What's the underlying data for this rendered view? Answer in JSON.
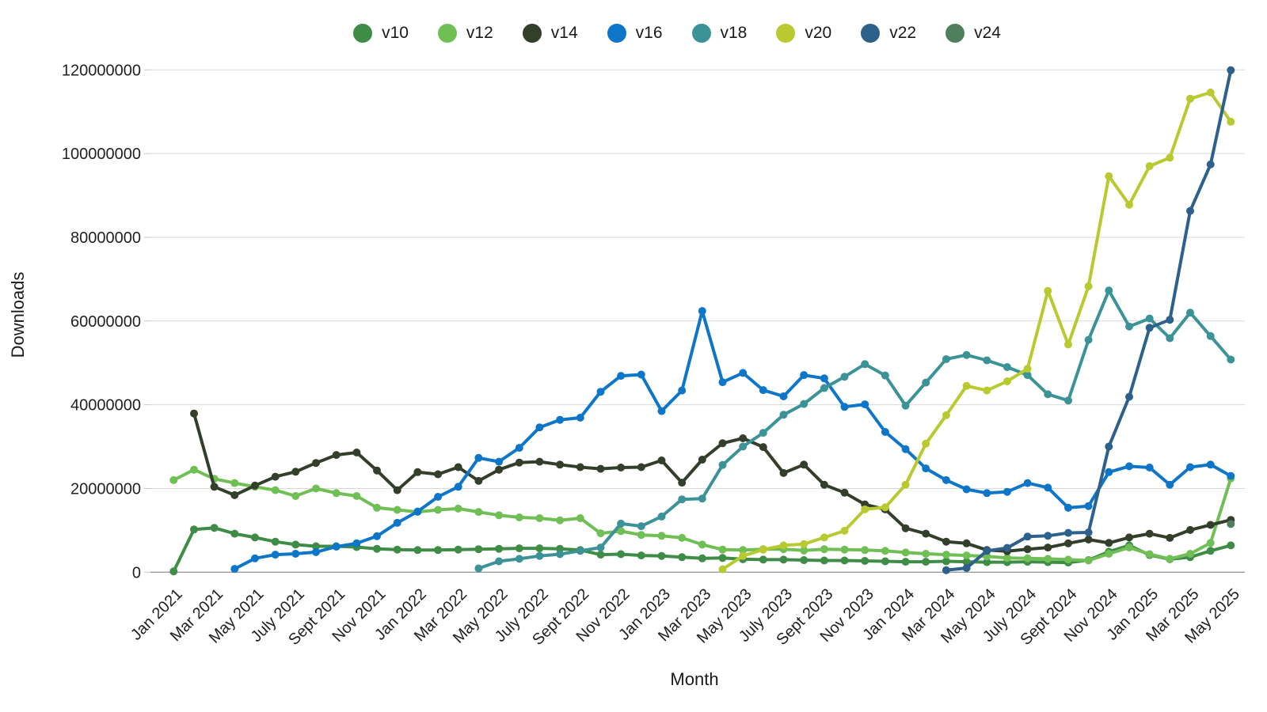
{
  "chart_data": {
    "type": "line",
    "title": "",
    "xlabel": "Month",
    "ylabel": "Downloads",
    "legend_position": "top-center",
    "grid": "horizontal",
    "ylim": [
      0,
      120000000
    ],
    "y_ticks": [
      0,
      20000000,
      40000000,
      60000000,
      80000000,
      100000000,
      120000000
    ],
    "x_tick_labels": [
      "Jan 2021",
      "Mar 2021",
      "May 2021",
      "July 2021",
      "Sept 2021",
      "Nov 2021",
      "Jan 2022",
      "Mar 2022",
      "May 2022",
      "July 2022",
      "Sept 2022",
      "Nov 2022",
      "Jan 2023",
      "Mar 2023",
      "May 2023",
      "July 2023",
      "Sept 2023",
      "Nov 2023",
      "Jan 2024",
      "Mar 2024",
      "May 2024",
      "July 2024",
      "Sept 2024",
      "Nov 2024",
      "Jan 2025",
      "Mar 2025",
      "May 2025"
    ],
    "x": [
      "Jan 2021",
      "Feb 2021",
      "Mar 2021",
      "Apr 2021",
      "May 2021",
      "Jun 2021",
      "Jul 2021",
      "Aug 2021",
      "Sep 2021",
      "Oct 2021",
      "Nov 2021",
      "Dec 2021",
      "Jan 2022",
      "Feb 2022",
      "Mar 2022",
      "Apr 2022",
      "May 2022",
      "Jun 2022",
      "Jul 2022",
      "Aug 2022",
      "Sep 2022",
      "Oct 2022",
      "Nov 2022",
      "Dec 2022",
      "Jan 2023",
      "Feb 2023",
      "Mar 2023",
      "Apr 2023",
      "May 2023",
      "Jun 2023",
      "Jul 2023",
      "Aug 2023",
      "Sep 2023",
      "Oct 2023",
      "Nov 2023",
      "Dec 2023",
      "Jan 2024",
      "Feb 2024",
      "Mar 2024",
      "Apr 2024",
      "May 2024",
      "Jun 2024",
      "Jul 2024",
      "Aug 2024",
      "Sep 2024",
      "Oct 2024",
      "Nov 2024",
      "Dec 2024",
      "Jan 2025",
      "Feb 2025",
      "Mar 2025",
      "Apr 2025",
      "May 2025"
    ],
    "series": [
      {
        "name": "v10",
        "color": "#3e8c45",
        "values": [
          200000,
          10200000,
          10600000,
          9200000,
          8300000,
          7300000,
          6600000,
          6200000,
          6200000,
          6000000,
          5600000,
          5400000,
          5300000,
          5300000,
          5400000,
          5500000,
          5600000,
          5700000,
          5700000,
          5600000,
          5300000,
          4200000,
          4300000,
          4000000,
          3900000,
          3600000,
          3300000,
          3400000,
          3100000,
          3000000,
          3000000,
          2900000,
          2800000,
          2800000,
          2700000,
          2600000,
          2500000,
          2500000,
          2600000,
          2500000,
          2400000,
          2400000,
          2500000,
          2400000,
          2300000,
          2900000,
          4900000,
          6400000,
          4100000,
          3100000,
          3600000,
          5100000,
          6400000
        ]
      },
      {
        "name": "v12",
        "color": "#70bf55",
        "values": [
          22000000,
          24500000,
          22300000,
          21300000,
          20400000,
          19600000,
          18200000,
          20000000,
          18900000,
          18200000,
          15400000,
          14900000,
          14400000,
          14900000,
          15200000,
          14400000,
          13600000,
          13100000,
          12900000,
          12400000,
          12900000,
          9300000,
          9800000,
          8900000,
          8700000,
          8200000,
          6600000,
          5400000,
          5300000,
          5500000,
          5500000,
          5200000,
          5500000,
          5400000,
          5300000,
          5100000,
          4700000,
          4400000,
          4200000,
          4000000,
          3800000,
          3400000,
          3300000,
          3200000,
          3000000,
          2800000,
          4400000,
          5900000,
          4300000,
          3200000,
          4400000,
          7000000,
          22400000
        ]
      },
      {
        "name": "v14",
        "color": "#333f2a",
        "values": [
          null,
          37900000,
          20400000,
          18400000,
          20700000,
          22800000,
          24000000,
          26100000,
          28000000,
          28600000,
          24300000,
          19600000,
          23900000,
          23400000,
          25100000,
          21800000,
          24500000,
          26200000,
          26400000,
          25700000,
          25100000,
          24700000,
          25000000,
          25100000,
          26700000,
          21400000,
          26900000,
          30800000,
          32000000,
          29900000,
          23700000,
          25700000,
          20900000,
          19000000,
          16200000,
          15000000,
          10500000,
          9200000,
          7300000,
          6900000,
          5300000,
          5000000,
          5500000,
          5900000,
          6900000,
          7800000,
          7000000,
          8300000,
          9200000,
          8200000,
          10100000,
          11300000,
          12500000
        ]
      },
      {
        "name": "v16",
        "color": "#0e76c8",
        "values": [
          null,
          null,
          null,
          800000,
          3300000,
          4200000,
          4400000,
          4800000,
          6100000,
          6900000,
          8600000,
          11800000,
          14500000,
          18000000,
          20400000,
          27300000,
          26400000,
          29700000,
          34600000,
          36400000,
          36900000,
          43100000,
          46900000,
          47200000,
          38500000,
          43400000,
          62400000,
          45400000,
          47600000,
          43500000,
          42000000,
          47100000,
          46300000,
          39500000,
          40100000,
          33500000,
          29400000,
          24800000,
          22000000,
          19800000,
          18900000,
          19200000,
          21300000,
          20200000,
          15400000,
          15800000,
          23900000,
          25300000,
          25000000,
          20900000,
          25100000,
          25700000,
          23000000
        ]
      },
      {
        "name": "v18",
        "color": "#3b9397",
        "values": [
          null,
          null,
          null,
          null,
          null,
          null,
          null,
          null,
          null,
          null,
          null,
          null,
          null,
          null,
          null,
          900000,
          2600000,
          3200000,
          3900000,
          4300000,
          5100000,
          5900000,
          11600000,
          11000000,
          13300000,
          17400000,
          17600000,
          25600000,
          30000000,
          33300000,
          37600000,
          40200000,
          44000000,
          46700000,
          49700000,
          47000000,
          39800000,
          45300000,
          50900000,
          51900000,
          50600000,
          49000000,
          47100000,
          42500000,
          41000000,
          55500000,
          67300000,
          58700000,
          60600000,
          55900000,
          62000000,
          56400000,
          50800000
        ]
      },
      {
        "name": "v20",
        "color": "#b9ca30",
        "values": [
          null,
          null,
          null,
          null,
          null,
          null,
          null,
          null,
          null,
          null,
          null,
          null,
          null,
          null,
          null,
          null,
          null,
          null,
          null,
          null,
          null,
          null,
          null,
          null,
          null,
          null,
          null,
          700000,
          3900000,
          5400000,
          6400000,
          6700000,
          8300000,
          9900000,
          15000000,
          15500000,
          20900000,
          30700000,
          37500000,
          44500000,
          43400000,
          45600000,
          48600000,
          67200000,
          54400000,
          68300000,
          94600000,
          87800000,
          97000000,
          99000000,
          113100000,
          114600000,
          107600000
        ]
      },
      {
        "name": "v22",
        "color": "#2e608c",
        "values": [
          null,
          null,
          null,
          null,
          null,
          null,
          null,
          null,
          null,
          null,
          null,
          null,
          null,
          null,
          null,
          null,
          null,
          null,
          null,
          null,
          null,
          null,
          null,
          null,
          null,
          null,
          null,
          null,
          null,
          null,
          null,
          null,
          null,
          null,
          null,
          null,
          null,
          null,
          500000,
          1000000,
          5100000,
          5800000,
          8500000,
          8700000,
          9400000,
          9500000,
          30000000,
          41900000,
          58400000,
          60300000,
          86300000,
          97400000,
          119900000
        ]
      },
      {
        "name": "v24",
        "color": "#4f7f5c",
        "values": [
          null,
          null,
          null,
          null,
          null,
          null,
          null,
          null,
          null,
          null,
          null,
          null,
          null,
          null,
          null,
          null,
          null,
          null,
          null,
          null,
          null,
          null,
          null,
          null,
          null,
          null,
          null,
          null,
          null,
          null,
          null,
          null,
          null,
          null,
          null,
          null,
          null,
          null,
          null,
          null,
          null,
          null,
          null,
          null,
          null,
          null,
          null,
          null,
          null,
          null,
          null,
          null,
          11500000
        ]
      }
    ]
  }
}
